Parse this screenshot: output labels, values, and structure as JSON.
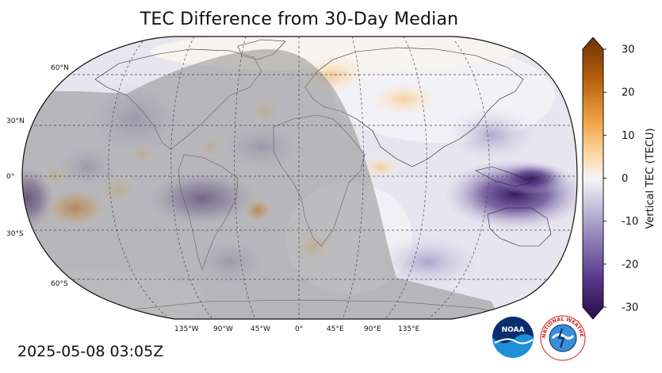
{
  "title": "TEC Difference from 30-Day Median",
  "timestamp": "2025-05-08 03:05Z",
  "map": {
    "projection": "Robinson",
    "lat_labels": [
      "60°N",
      "30°N",
      "0°",
      "30°S",
      "60°S"
    ],
    "lon_labels": [
      "135°W",
      "90°W",
      "45°W",
      "0°",
      "45°E",
      "90°E",
      "135°E"
    ],
    "night_shading": "gray overlay on night side",
    "features": [
      {
        "name": "negative-anomaly-southeast-asia",
        "value": -25
      },
      {
        "name": "negative-anomaly-south-america",
        "value": -20
      },
      {
        "name": "negative-anomaly-east-pacific",
        "value": -25
      },
      {
        "name": "positive-anomaly-southeast-pacific",
        "value": 15
      },
      {
        "name": "positive-anomaly-europe",
        "value": 5
      }
    ]
  },
  "colorbar": {
    "label": "Vertical TEC (TECU)",
    "min": -30,
    "max": 30,
    "ticks": [
      "30",
      "20",
      "10",
      "0",
      "-10",
      "-20",
      "-30"
    ],
    "negative_color": "#2d0a4a",
    "neutral_color": "#f5f5f7",
    "positive_color": "#7a3a05"
  },
  "logos": {
    "noaa_text": "NOAA",
    "nws_text": "NATIONAL WEATHER SERVICE"
  }
}
